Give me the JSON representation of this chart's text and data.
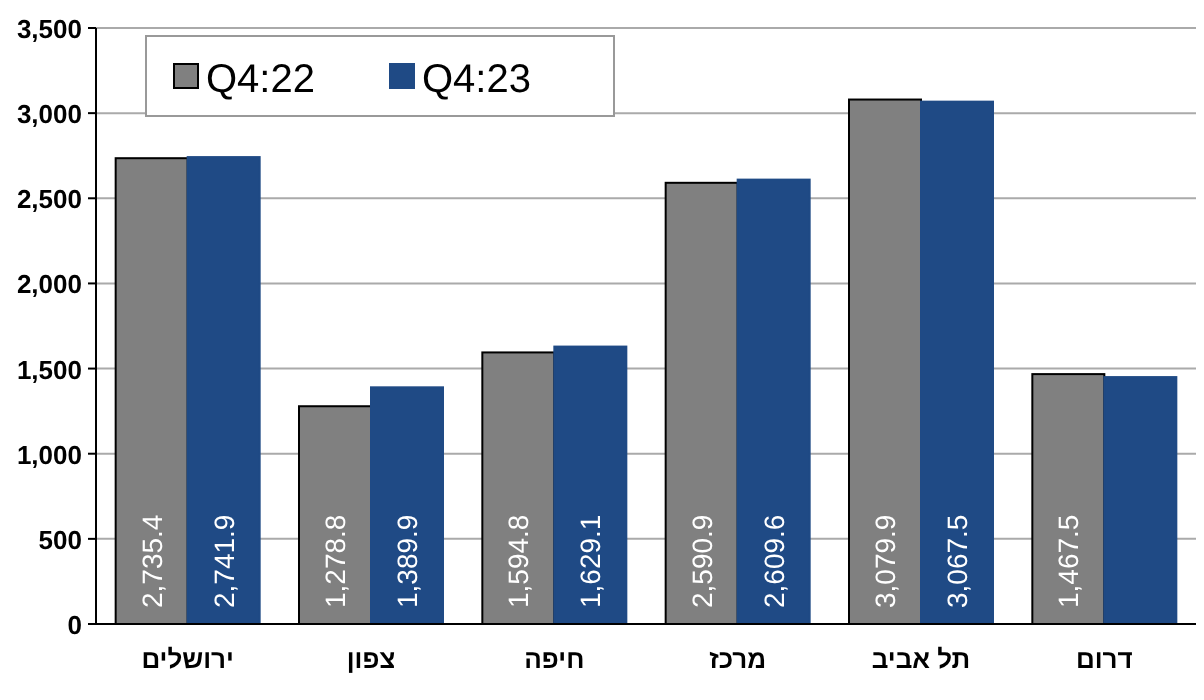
{
  "chart_data": {
    "type": "bar",
    "categories": [
      "ירושלים",
      "צפון",
      "חיפה",
      "מרכז",
      "תל אביב",
      "דרום"
    ],
    "series": [
      {
        "name": "Q4:22",
        "color": "#808080",
        "values": [
          2735.4,
          1278.8,
          1594.8,
          2590.9,
          3079.9,
          1467.5
        ],
        "value_labels": [
          "2,735.4",
          "1,278.8",
          "1,594.8",
          "2,590.9",
          "3,079.9",
          "1,467.5"
        ]
      },
      {
        "name": "Q4:23",
        "color": "#1f4a85",
        "values": [
          2741.9,
          1389.9,
          1629.1,
          2609.6,
          3067.5,
          1450
        ],
        "value_labels": [
          "2,741.9",
          "1,389.9",
          "1,629.1",
          "2,609.6",
          "3,067.5",
          null
        ]
      }
    ],
    "ylim": [
      0,
      3500
    ],
    "yticks": [
      0,
      {
        "value": 500,
        "label": "500"
      },
      {
        "value": 1000,
        "label": "1,000"
      },
      {
        "value": 1500,
        "label": "1,500"
      },
      {
        "value": 2000,
        "label": "2,000"
      },
      {
        "value": 2500,
        "label": "2,500"
      },
      {
        "value": 3000,
        "label": "3,000"
      },
      {
        "value": 3500,
        "label": "3,500"
      }
    ],
    "grid": "y",
    "legend": "top left"
  }
}
